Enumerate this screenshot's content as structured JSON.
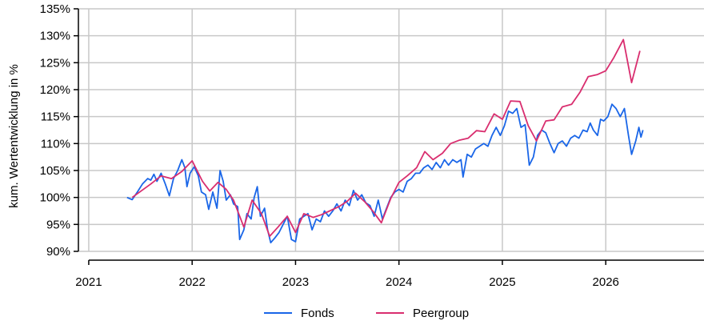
{
  "chart_data": {
    "type": "line",
    "y_label": "kum. Wertentwicklung in %",
    "xlim": [
      2020.9,
      2026.95
    ],
    "xticks": [
      2021,
      2022,
      2023,
      2024,
      2025,
      2026
    ],
    "ylim": [
      90,
      135
    ],
    "yticks": [
      {
        "value": 90,
        "label": "90%"
      },
      {
        "value": 95,
        "label": "95%"
      },
      {
        "value": 100,
        "label": "100%"
      },
      {
        "value": 105,
        "label": "105%"
      },
      {
        "value": 110,
        "label": "110%"
      },
      {
        "value": 115,
        "label": "115%"
      },
      {
        "value": 120,
        "label": "120%"
      },
      {
        "value": 125,
        "label": "125%"
      },
      {
        "value": 130,
        "label": "130%"
      },
      {
        "value": 135,
        "label": "135%"
      }
    ],
    "grid": true,
    "legend": "bottom",
    "series": [
      {
        "name": "Fonds",
        "color": "#1a66e8",
        "x": [
          2021.37,
          2021.42,
          2021.47,
          2021.52,
          2021.57,
          2021.6,
          2021.63,
          2021.66,
          2021.7,
          2021.74,
          2021.78,
          2021.82,
          2021.86,
          2021.9,
          2021.93,
          2021.95,
          2021.98,
          2022.02,
          2022.06,
          2022.09,
          2022.13,
          2022.16,
          2022.2,
          2022.24,
          2022.27,
          2022.3,
          2022.33,
          2022.37,
          2022.4,
          2022.44,
          2022.46,
          2022.5,
          2022.53,
          2022.57,
          2022.6,
          2022.63,
          2022.66,
          2022.7,
          2022.73,
          2022.76,
          2022.8,
          2022.84,
          2022.88,
          2022.92,
          2022.96,
          2023.0,
          2023.04,
          2023.08,
          2023.12,
          2023.16,
          2023.2,
          2023.24,
          2023.28,
          2023.32,
          2023.36,
          2023.4,
          2023.44,
          2023.48,
          2023.52,
          2023.56,
          2023.6,
          2023.64,
          2023.68,
          2023.72,
          2023.76,
          2023.8,
          2023.84,
          2023.88,
          2023.92,
          2023.96,
          2024.0,
          2024.04,
          2024.08,
          2024.12,
          2024.16,
          2024.2,
          2024.24,
          2024.28,
          2024.32,
          2024.36,
          2024.4,
          2024.44,
          2024.48,
          2024.52,
          2024.56,
          2024.6,
          2024.62,
          2024.66,
          2024.7,
          2024.74,
          2024.78,
          2024.82,
          2024.86,
          2024.9,
          2024.94,
          2024.98,
          2025.02,
          2025.06,
          2025.1,
          2025.14,
          2025.18,
          2025.22,
          2025.26,
          2025.3,
          2025.34,
          2025.38,
          2025.42,
          2025.46,
          2025.5,
          2025.54,
          2025.58,
          2025.62,
          2025.66,
          2025.7,
          2025.74,
          2025.78,
          2025.82,
          2025.85,
          2025.88,
          2025.92,
          2025.95,
          2025.98,
          2026.02,
          2026.06,
          2026.1,
          2026.14,
          2026.18,
          2026.22,
          2026.25,
          2026.29,
          2026.32,
          2026.34,
          2026.36
        ],
        "values": [
          100,
          99.6,
          101,
          102.5,
          103.5,
          103.2,
          104.3,
          103,
          104.5,
          102.5,
          100.3,
          103.5,
          105,
          107,
          105.5,
          102,
          104.5,
          105.7,
          104,
          101,
          100.5,
          97.8,
          101,
          98,
          105,
          103,
          99.5,
          100.5,
          98.8,
          98.3,
          92.2,
          94,
          97,
          96,
          100,
          102,
          96.5,
          98,
          94,
          91.6,
          92.5,
          93.5,
          95,
          96.5,
          92.2,
          91.8,
          96,
          96.5,
          97,
          94,
          96,
          95.5,
          97.5,
          96.5,
          97.5,
          98.8,
          97.5,
          99.5,
          98.5,
          101.3,
          99.5,
          100.5,
          99,
          98.5,
          96.5,
          99.5,
          96,
          98,
          100,
          101,
          101.5,
          101,
          103,
          103.5,
          104.5,
          104.5,
          105.5,
          106,
          105.2,
          106.5,
          105.5,
          107,
          106,
          107,
          106.5,
          107,
          103.8,
          108,
          107.5,
          109,
          109.5,
          110,
          109.5,
          111.5,
          113,
          111.5,
          113.3,
          116,
          115.6,
          116.5,
          113,
          113.5,
          106,
          107.5,
          111.5,
          112.5,
          112,
          110,
          108.3,
          110,
          110.5,
          109.5,
          111,
          111.5,
          111,
          112.5,
          112.2,
          113.8,
          112.5,
          111.5,
          114.5,
          114.2,
          115,
          117.3,
          116.5,
          115,
          116.5,
          111.5,
          108,
          110.5,
          113,
          111.2,
          112.5
        ]
      },
      {
        "name": "Peergroup",
        "color": "#d92e6f",
        "x": [
          2021.42,
          2021.6,
          2021.7,
          2021.8,
          2021.9,
          2022.0,
          2022.1,
          2022.17,
          2022.25,
          2022.33,
          2022.4,
          2022.5,
          2022.58,
          2022.67,
          2022.75,
          2022.83,
          2022.92,
          2023.0,
          2023.08,
          2023.17,
          2023.25,
          2023.33,
          2023.42,
          2023.5,
          2023.58,
          2023.67,
          2023.75,
          2023.83,
          2023.92,
          2024.0,
          2024.08,
          2024.17,
          2024.25,
          2024.33,
          2024.42,
          2024.5,
          2024.58,
          2024.67,
          2024.75,
          2024.83,
          2024.92,
          2025.0,
          2025.08,
          2025.17,
          2025.25,
          2025.33,
          2025.42,
          2025.5,
          2025.58,
          2025.67,
          2025.75,
          2025.83,
          2025.92,
          2026.0,
          2026.08,
          2026.17,
          2026.25,
          2026.33
        ],
        "values": [
          100,
          102.5,
          104,
          103.5,
          104.8,
          106.8,
          103,
          101.2,
          102.8,
          101.5,
          99.5,
          94.5,
          99.5,
          97,
          92.8,
          94.5,
          96.5,
          93.5,
          97,
          96.3,
          96.8,
          97.5,
          98.3,
          99.3,
          100.8,
          99.2,
          97.4,
          95.3,
          99.8,
          102.8,
          104,
          105.5,
          108.5,
          107,
          108.2,
          110,
          110.6,
          111,
          112.4,
          112.2,
          115.5,
          114.5,
          117.9,
          117.8,
          113.3,
          110.5,
          114.2,
          114.4,
          116.8,
          117.3,
          119.5,
          122.4,
          122.8,
          123.5,
          126,
          129.3,
          121.3,
          127.2
        ]
      }
    ]
  }
}
